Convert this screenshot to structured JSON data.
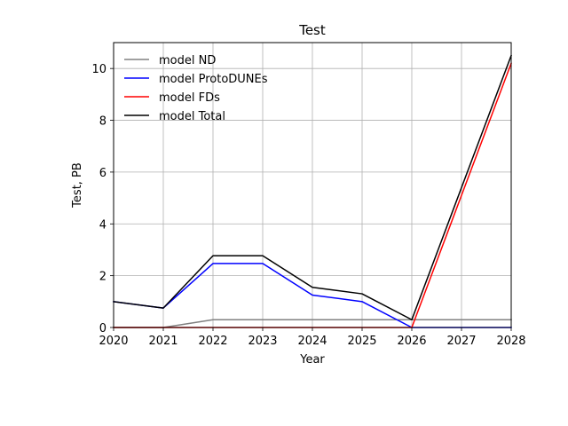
{
  "chart_data": {
    "type": "line",
    "title": "Test",
    "xlabel": "Year",
    "ylabel": "Test, PB",
    "x": [
      2020,
      2021,
      2022,
      2023,
      2024,
      2025,
      2026,
      2027,
      2028
    ],
    "xlim": [
      2020,
      2028
    ],
    "ylim": [
      0,
      11
    ],
    "xticks": [
      2020,
      2021,
      2022,
      2023,
      2024,
      2025,
      2026,
      2027,
      2028
    ],
    "yticks": [
      0,
      2,
      4,
      6,
      8,
      10
    ],
    "grid": true,
    "legend_position": "top-left",
    "series": [
      {
        "name": "model ND",
        "color": "#808080",
        "values": [
          0,
          0,
          0.3,
          0.3,
          0.3,
          0.3,
          0.3,
          0.3,
          0.3
        ]
      },
      {
        "name": "model ProtoDUNEs",
        "color": "#0000ff",
        "values": [
          1.0,
          0.75,
          2.47,
          2.47,
          1.25,
          1.0,
          0,
          0,
          0
        ]
      },
      {
        "name": "model FDs",
        "color": "#ff0000",
        "values": [
          0,
          0,
          0,
          0,
          0,
          0,
          0,
          5.1,
          10.2
        ]
      },
      {
        "name": "model Total",
        "color": "#000000",
        "values": [
          1.0,
          0.75,
          2.77,
          2.77,
          1.55,
          1.3,
          0.3,
          5.4,
          10.5
        ]
      }
    ]
  }
}
